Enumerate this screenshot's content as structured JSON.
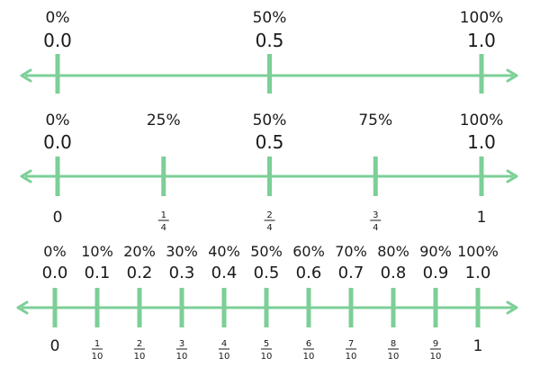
{
  "colors": {
    "line": "#7ccf97",
    "text": "#1a1a1a"
  },
  "number_lines": [
    {
      "ticks": [
        {
          "value": 0.0,
          "percent": "0%",
          "decimal": "0.0"
        },
        {
          "value": 0.5,
          "percent": "50%",
          "decimal": "0.5"
        },
        {
          "value": 1.0,
          "percent": "100%",
          "decimal": "1.0"
        }
      ]
    },
    {
      "ticks": [
        {
          "value": 0.0,
          "percent": "0%",
          "decimal": "0.0",
          "label": "0"
        },
        {
          "value": 0.25,
          "percent": "25%",
          "decimal": "",
          "numerator": "1",
          "denominator": "4"
        },
        {
          "value": 0.5,
          "percent": "50%",
          "decimal": "0.5",
          "numerator": "2",
          "denominator": "4"
        },
        {
          "value": 0.75,
          "percent": "75%",
          "decimal": "",
          "numerator": "3",
          "denominator": "4"
        },
        {
          "value": 1.0,
          "percent": "100%",
          "decimal": "1.0",
          "label": "1"
        }
      ]
    },
    {
      "ticks": [
        {
          "value": 0.0,
          "percent": "0%",
          "decimal": "0.0",
          "label": "0"
        },
        {
          "value": 0.1,
          "percent": "10%",
          "decimal": "0.1",
          "numerator": "1",
          "denominator": "10"
        },
        {
          "value": 0.2,
          "percent": "20%",
          "decimal": "0.2",
          "numerator": "2",
          "denominator": "10"
        },
        {
          "value": 0.3,
          "percent": "30%",
          "decimal": "0.3",
          "numerator": "3",
          "denominator": "10"
        },
        {
          "value": 0.4,
          "percent": "40%",
          "decimal": "0.4",
          "numerator": "4",
          "denominator": "10"
        },
        {
          "value": 0.5,
          "percent": "50%",
          "decimal": "0.5",
          "numerator": "5",
          "denominator": "10"
        },
        {
          "value": 0.6,
          "percent": "60%",
          "decimal": "0.6",
          "numerator": "6",
          "denominator": "10"
        },
        {
          "value": 0.7,
          "percent": "70%",
          "decimal": "0.7",
          "numerator": "7",
          "denominator": "10"
        },
        {
          "value": 0.8,
          "percent": "80%",
          "decimal": "0.8",
          "numerator": "8",
          "denominator": "10"
        },
        {
          "value": 0.9,
          "percent": "90%",
          "decimal": "0.9",
          "numerator": "9",
          "denominator": "10"
        },
        {
          "value": 1.0,
          "percent": "100%",
          "decimal": "1.0",
          "label": "1"
        }
      ]
    }
  ]
}
